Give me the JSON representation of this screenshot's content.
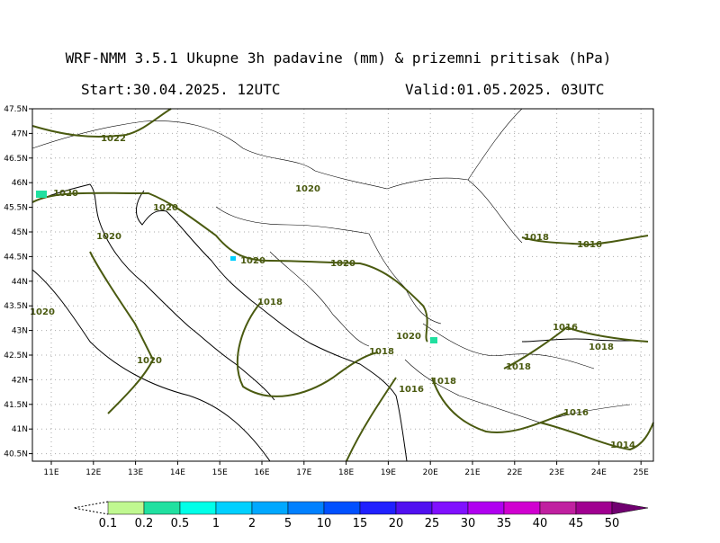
{
  "header": {
    "title": "WRF-NMM 3.5.1  Ukupne 3h padavine (mm) & prizemni pritisak (hPa)",
    "start": "Start:30.04.2025.  12UTC",
    "valid": "Valid:01.05.2025.  03UTC"
  },
  "map": {
    "lat_labels": [
      "47.5N",
      "47N",
      "46.5N",
      "46N",
      "45.5N",
      "45N",
      "44.5N",
      "44N",
      "43.5N",
      "43N",
      "42.5N",
      "42N",
      "41.5N",
      "41N",
      "40.5N"
    ],
    "lon_labels": [
      "11E",
      "12E",
      "13E",
      "14E",
      "15E",
      "16E",
      "17E",
      "18E",
      "19E",
      "20E",
      "21E",
      "22E",
      "23E",
      "24E",
      "25E"
    ],
    "isobar_labels": [
      "1022",
      "1020",
      "1020",
      "1020",
      "1020",
      "1020",
      "1020",
      "1018",
      "1020",
      "1020",
      "1018",
      "1020",
      "1016",
      "1018",
      "1018",
      "1018",
      "1016",
      "1016",
      "1018",
      "1016",
      "1014"
    ]
  },
  "legend": {
    "labels": [
      "0.1",
      "0.2",
      "0.5",
      "1",
      "2",
      "5",
      "10",
      "15",
      "20",
      "25",
      "30",
      "35",
      "40",
      "45",
      "50"
    ],
    "colors": [
      "#c0f890",
      "#20e0a0",
      "#00ffe8",
      "#00d0ff",
      "#00a8ff",
      "#0080ff",
      "#0050ff",
      "#2020ff",
      "#5010f0",
      "#8010ff",
      "#b000f0",
      "#d000d0",
      "#c020a0",
      "#a00090"
    ],
    "over_color": "#700070"
  }
}
